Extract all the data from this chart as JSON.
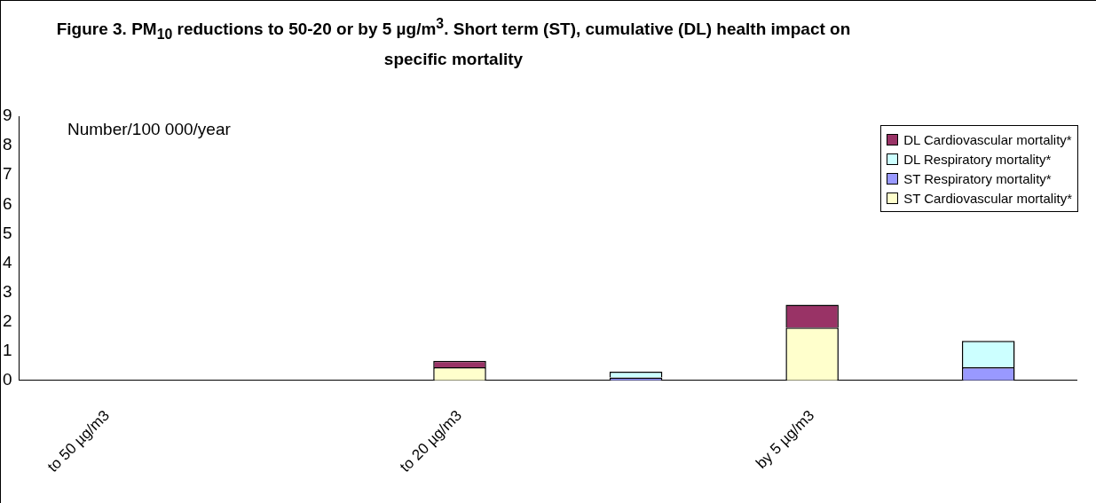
{
  "chart_data": {
    "type": "bar",
    "title": "Figure 3. PM$_{10}$ reductions to 50-20 or by 5 µg/m$^{3}$. Short term (ST), cumulative (DL) health impact on specific mortality",
    "ylabel": "Number/100 000/year",
    "categories": [
      "to 50 µg/m3",
      null,
      "to 20 µg/m3",
      null,
      "by 5 µg/m3",
      null
    ],
    "stacked": true,
    "series": [
      {
        "name": "ST Cardiovascular mortality*",
        "color": "#ffffcc",
        "values": [
          0,
          null,
          0.45,
          null,
          1.8,
          null
        ]
      },
      {
        "name": "ST Respiratory mortality*",
        "color": "#9999ff",
        "values": [
          null,
          0,
          null,
          0.1,
          null,
          0.45
        ]
      },
      {
        "name": "DL Respiratory mortality*",
        "color": "#ccffff",
        "values": [
          null,
          0,
          null,
          0.2,
          null,
          0.9
        ]
      },
      {
        "name": "DL Cardiovascular mortality*",
        "color": "#993366",
        "values": [
          0,
          null,
          0.22,
          null,
          0.78,
          null
        ]
      }
    ],
    "ylim": [
      0,
      9
    ],
    "yticks": [
      0,
      1,
      2,
      3,
      4,
      5,
      6,
      7,
      8,
      9
    ],
    "grid": false,
    "legend": "top right"
  }
}
